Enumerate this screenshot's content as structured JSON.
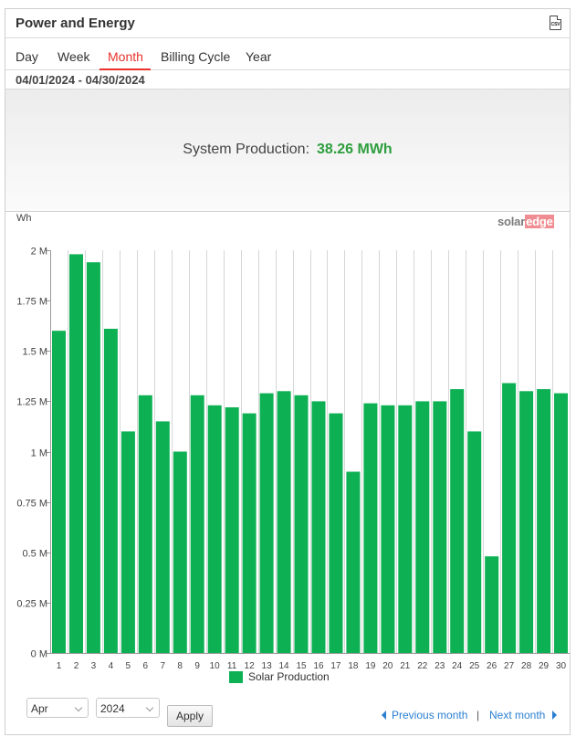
{
  "header": {
    "title": "Power and Energy",
    "csv_label": "CSV"
  },
  "tabs": [
    {
      "label": "Day"
    },
    {
      "label": "Week"
    },
    {
      "label": "Month",
      "active": true
    },
    {
      "label": "Billing Cycle"
    },
    {
      "label": "Year"
    }
  ],
  "date_range": "04/01/2024 - 04/30/2024",
  "summary": {
    "label": "System Production:",
    "value": "38.26 MWh"
  },
  "chart_unit": "Wh",
  "logo": {
    "part1": "solar",
    "part2": "edge"
  },
  "chart_data": {
    "type": "bar",
    "categories": [
      "1",
      "2",
      "3",
      "4",
      "5",
      "6",
      "7",
      "8",
      "9",
      "10",
      "11",
      "12",
      "13",
      "14",
      "15",
      "16",
      "17",
      "18",
      "19",
      "20",
      "21",
      "22",
      "23",
      "24",
      "25",
      "26",
      "27",
      "28",
      "29",
      "30"
    ],
    "series": [
      {
        "name": "Solar Production",
        "color": "#0db153",
        "values": [
          1600000,
          1980000,
          1940000,
          1610000,
          1100000,
          1280000,
          1150000,
          1000000,
          1280000,
          1230000,
          1220000,
          1190000,
          1290000,
          1300000,
          1280000,
          1250000,
          1190000,
          900000,
          1240000,
          1230000,
          1230000,
          1250000,
          1250000,
          1310000,
          1100000,
          480000,
          1340000,
          1300000,
          1310000,
          1290000
        ]
      }
    ],
    "ylabel": "Wh",
    "ylim": [
      0,
      2000000
    ],
    "yticks": [
      {
        "value": 0,
        "label": "0 M"
      },
      {
        "value": 250000,
        "label": "0.25 M"
      },
      {
        "value": 500000,
        "label": "0.5 M"
      },
      {
        "value": 750000,
        "label": "0.75 M"
      },
      {
        "value": 1000000,
        "label": "1 M"
      },
      {
        "value": 1250000,
        "label": "1.25 M"
      },
      {
        "value": 1500000,
        "label": "1.5 M"
      },
      {
        "value": 1750000,
        "label": "1.75 M"
      },
      {
        "value": 2000000,
        "label": "2 M"
      }
    ],
    "grid": "vertical",
    "legend": "bottom-center"
  },
  "legend": {
    "label": "Solar Production"
  },
  "controls": {
    "month_value": "Apr",
    "year_value": "2024",
    "apply_label": "Apply",
    "prev_label": "Previous month",
    "separator": "|",
    "next_label": "Next month"
  }
}
